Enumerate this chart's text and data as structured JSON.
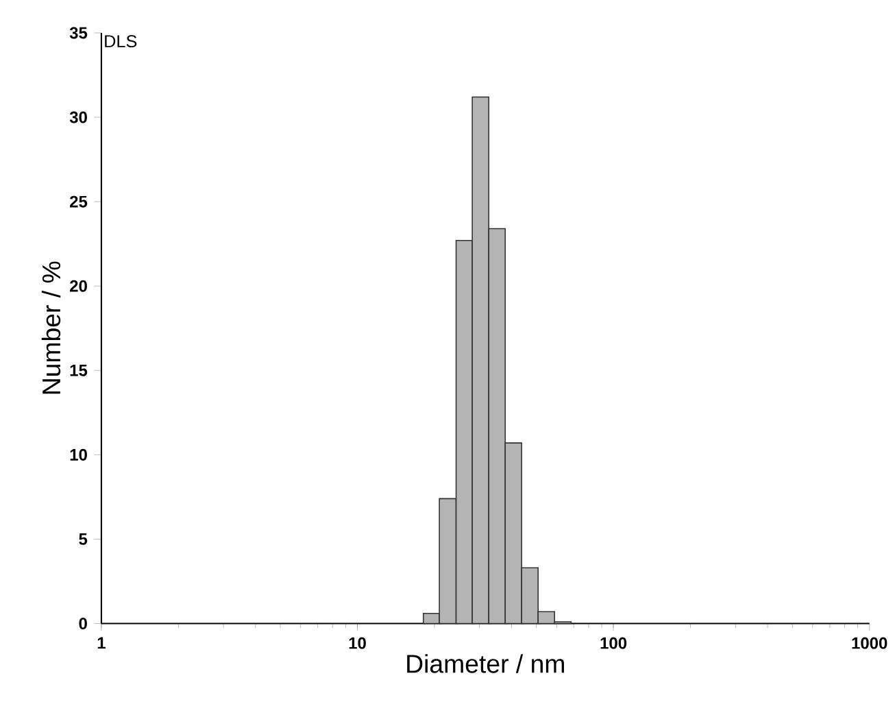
{
  "chart_data": {
    "type": "histogram",
    "bins": [
      18.1,
      20.9,
      24.3,
      28.1,
      32.6,
      37.8,
      43.8,
      50.8,
      58.9,
      68.3
    ],
    "values": [
      0.6,
      7.4,
      22.7,
      31.2,
      23.4,
      10.7,
      3.3,
      0.7,
      0.1
    ],
    "color": "#b4b4b4",
    "xlabel": "Diameter / nm",
    "ylabel": "Number / %",
    "log": "x",
    "xlim": [
      1,
      1000
    ],
    "xticks": [
      1,
      10,
      100,
      1000
    ],
    "ylim": [
      0,
      35
    ],
    "yticks": [
      0,
      5,
      10,
      15,
      20,
      25,
      30,
      35
    ],
    "annotations": [
      "DLS"
    ]
  }
}
